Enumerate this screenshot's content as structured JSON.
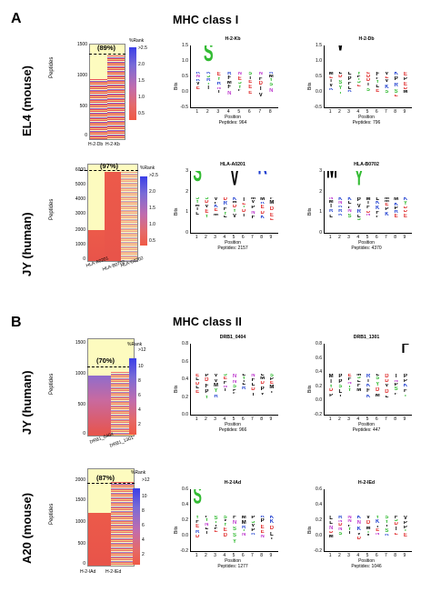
{
  "panelA": {
    "letter": "A",
    "title": "MHC class I",
    "rows": [
      {
        "label": "EL4 (mouse)",
        "heatmap": {
          "yaxis_label": "Peptides",
          "yticks": [
            "1500",
            "1000",
            "500",
            "0"
          ],
          "columns": [
            "H-2-Db",
            "H-2-Kb"
          ],
          "percent": "(89%)",
          "colorbar_title": "%Rank",
          "colorbar_ticks": [
            ">2.5",
            "2.0",
            "1.5",
            "1.0",
            "0.5"
          ]
        },
        "logos": [
          {
            "title": "H-2-Kb",
            "xlabel": "Position",
            "ylabel": "Bits",
            "peptides": "Peptides: 964",
            "positions": [
              "1",
              "2",
              "3",
              "4",
              "5",
              "6",
              "7",
              "8"
            ],
            "yticks": [
              "1.5",
              "1.0",
              "0.5",
              "0.0",
              "-0.5"
            ]
          },
          {
            "title": "H-2-Db",
            "xlabel": "Position",
            "ylabel": "Bits",
            "peptides": "Peptides: 796",
            "positions": [
              "1",
              "2",
              "3",
              "4",
              "5",
              "6",
              "7",
              "8",
              "9"
            ],
            "yticks": [
              "1.5",
              "1.0",
              "0.5",
              "0.0",
              "-0.5"
            ]
          }
        ]
      },
      {
        "label": "JY (human)",
        "heatmap": {
          "yaxis_label": "Peptides",
          "yticks": [
            "6000",
            "5000",
            "4000",
            "3000",
            "2000",
            "1000",
            "0"
          ],
          "columns": [
            "HLA-A0201",
            "HLA-B0702",
            "HLA-C0702"
          ],
          "percent": "(97%)",
          "colorbar_title": "%Rank",
          "colorbar_ticks": [
            ">2.5",
            "2.0",
            "1.5",
            "1.0",
            "0.5"
          ]
        },
        "logos": [
          {
            "title": "HLA-A0201",
            "xlabel": "Position",
            "ylabel": "Bits",
            "peptides": "Peptides: 2157",
            "positions": [
              "1",
              "2",
              "3",
              "4",
              "5",
              "6",
              "7",
              "8",
              "9"
            ],
            "yticks": [
              "3",
              "2",
              "1",
              "0"
            ]
          },
          {
            "title": "HLA-B0702",
            "xlabel": "Position",
            "ylabel": "Bits",
            "peptides": "Peptides: 4370",
            "positions": [
              "1",
              "2",
              "3",
              "4",
              "5",
              "6",
              "7",
              "8",
              "9"
            ],
            "yticks": [
              "3",
              "2",
              "1",
              "0"
            ]
          }
        ]
      }
    ]
  },
  "panelB": {
    "letter": "B",
    "title": "MHC class II",
    "rows": [
      {
        "label": "JY (human)",
        "heatmap": {
          "yaxis_label": "Peptides",
          "yticks": [
            "1500",
            "1000",
            "500",
            "0"
          ],
          "columns": [
            "DRB1_0404",
            "DRB1_1301"
          ],
          "percent": "(70%)",
          "colorbar_title": "%Rank",
          "colorbar_ticks": [
            ">12",
            "10",
            "8",
            "6",
            "4",
            "2"
          ]
        },
        "logos": [
          {
            "title": "DRB1_0404",
            "xlabel": "Position",
            "ylabel": "Bits",
            "peptides": "Peptides: 966",
            "positions": [
              "1",
              "2",
              "3",
              "4",
              "5",
              "6",
              "7",
              "8",
              "9"
            ],
            "yticks": [
              "0.8",
              "0.6",
              "0.4",
              "0.2",
              "0.0"
            ]
          },
          {
            "title": "DRB1_1301",
            "xlabel": "Position",
            "ylabel": "Bits",
            "peptides": "Peptides: 447",
            "positions": [
              "1",
              "2",
              "3",
              "4",
              "5",
              "6",
              "7",
              "8",
              "9"
            ],
            "yticks": [
              "0.8",
              "0.6",
              "0.4",
              "0.2",
              "0.0",
              "-0.2"
            ]
          }
        ]
      },
      {
        "label": "A20 (mouse)",
        "heatmap": {
          "yaxis_label": "Peptides",
          "yticks": [
            "2000",
            "1500",
            "1000",
            "500",
            "0"
          ],
          "columns": [
            "H-2-IAd",
            "H-2-IEd"
          ],
          "percent": "(87%)",
          "colorbar_title": "%Rank",
          "colorbar_ticks": [
            ">12",
            "10",
            "8",
            "6",
            "4",
            "2"
          ]
        },
        "logos": [
          {
            "title": "H-2-IAd",
            "xlabel": "Position",
            "ylabel": "Bits",
            "peptides": "Peptides: 1277",
            "positions": [
              "1",
              "2",
              "3",
              "4",
              "5",
              "6",
              "7",
              "8",
              "9"
            ],
            "yticks": [
              "0.6",
              "0.4",
              "0.2",
              "0.0",
              "-0.2"
            ]
          },
          {
            "title": "H-2-IEd",
            "xlabel": "Position",
            "ylabel": "Bits",
            "peptides": "Peptides: 1046",
            "positions": [
              "1",
              "2",
              "3",
              "4",
              "5",
              "6",
              "7",
              "8",
              "9"
            ],
            "yticks": [
              "0.6",
              "0.4",
              "0.2",
              "0.0",
              "-0.2"
            ]
          }
        ]
      }
    ]
  },
  "logo_letters": [
    {
      "glyph": "L",
      "color": "#000000"
    },
    {
      "glyph": "F",
      "color": "#000000"
    },
    {
      "glyph": "Y",
      "color": "#33bb33"
    },
    {
      "glyph": "N",
      "color": "#c040d0"
    },
    {
      "glyph": "M",
      "color": "#000000"
    },
    {
      "glyph": "E",
      "color": "#e03030"
    },
    {
      "glyph": "K",
      "color": "#2040d0"
    },
    {
      "glyph": "R",
      "color": "#2040d0"
    },
    {
      "glyph": "S",
      "color": "#33bb33"
    },
    {
      "glyph": "D",
      "color": "#e03030"
    },
    {
      "glyph": "P",
      "color": "#000000"
    },
    {
      "glyph": "V",
      "color": "#000000"
    },
    {
      "glyph": "I",
      "color": "#000000"
    }
  ]
}
